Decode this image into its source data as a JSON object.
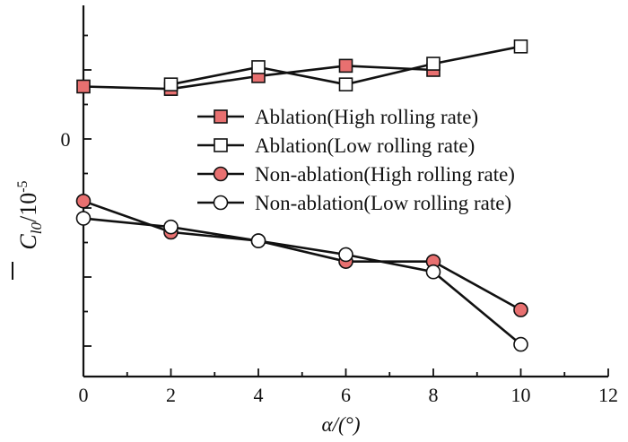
{
  "chart_data": {
    "type": "line",
    "xlabel": "α/(°)",
    "ylabel_main": "C",
    "ylabel_sub": "l0",
    "ylabel_unit": "/10",
    "ylabel_exp": "-5",
    "xlim": [
      0,
      12
    ],
    "xticks": [
      "0",
      "2",
      "4",
      "6",
      "8",
      "10",
      "12"
    ],
    "yticks": [
      {
        "value": 0,
        "label": "0"
      }
    ],
    "legend_position": "right-center",
    "grid": false,
    "series": [
      {
        "name": "Ablation(High rolling rate)",
        "marker": "square",
        "filled": true,
        "x": [
          0,
          2,
          4,
          6,
          8
        ],
        "y": [
          1.52,
          1.45,
          1.82,
          2.12,
          2.0
        ]
      },
      {
        "name": "Ablation(Low rolling rate)",
        "marker": "square",
        "filled": false,
        "x": [
          2,
          4,
          6,
          8,
          10
        ],
        "y": [
          1.58,
          2.08,
          1.58,
          2.18,
          2.68
        ]
      },
      {
        "name": "Non-ablation(High rolling rate)",
        "marker": "circle",
        "filled": true,
        "x": [
          0,
          2,
          4,
          6,
          8,
          10
        ],
        "y": [
          -1.8,
          -2.7,
          -2.95,
          -3.55,
          -3.55,
          -4.95
        ]
      },
      {
        "name": "Non-ablation(Low rolling rate)",
        "marker": "circle",
        "filled": false,
        "x": [
          0,
          2,
          4,
          6,
          8,
          10
        ],
        "y": [
          -2.3,
          -2.55,
          -2.95,
          -3.35,
          -3.85,
          -5.95
        ]
      }
    ],
    "colors": {
      "filled_marker": "#e87070",
      "open_marker": "#ffffff",
      "line": "#111111"
    }
  }
}
